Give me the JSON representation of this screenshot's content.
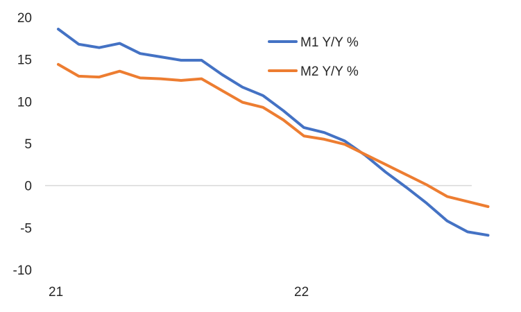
{
  "chart_data": {
    "type": "line",
    "title": "",
    "xlabel": "",
    "ylabel": "",
    "ylim": [
      -10,
      20
    ],
    "yticks": [
      "20",
      "15",
      "10",
      "5",
      "0",
      "-5",
      "-10"
    ],
    "xtick_labels": [
      {
        "label": "21",
        "index": 0
      },
      {
        "label": "22",
        "index": 12
      }
    ],
    "x_count": 22,
    "grid": false,
    "legend_position": "top-right",
    "colors": {
      "M1": "#4472c4",
      "M2": "#ed7d31",
      "zero_line": "#d9d9d9"
    },
    "series": [
      {
        "name": "M1 Y/Y %",
        "color": "#4472c4",
        "values": [
          18.6,
          16.8,
          16.4,
          16.9,
          15.7,
          15.3,
          14.9,
          14.9,
          13.2,
          11.7,
          10.7,
          8.9,
          6.9,
          6.3,
          5.3,
          3.6,
          1.6,
          -0.2,
          -2.1,
          -4.2,
          -5.5,
          -5.9
        ]
      },
      {
        "name": "M2 Y/Y %",
        "color": "#ed7d31",
        "values": [
          14.4,
          13.0,
          12.9,
          13.6,
          12.8,
          12.7,
          12.5,
          12.7,
          11.3,
          9.9,
          9.3,
          7.8,
          5.9,
          5.5,
          4.9,
          3.7,
          2.5,
          1.3,
          0.1,
          -1.3,
          -1.9,
          -2.5
        ]
      }
    ]
  }
}
